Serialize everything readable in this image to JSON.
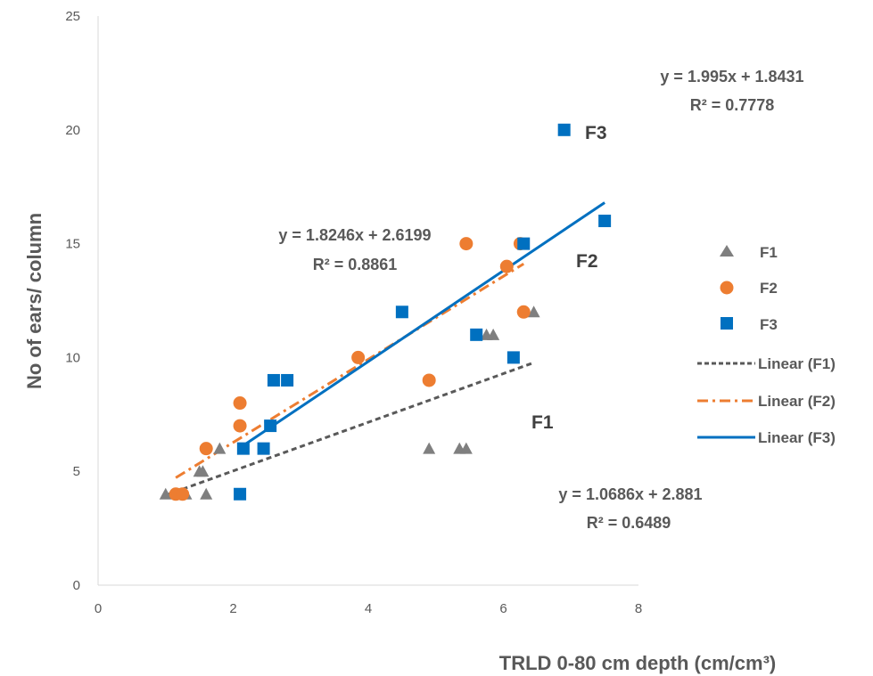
{
  "chart_data": {
    "type": "scatter",
    "title": "",
    "xlabel": "TRLD 0-80 cm depth (cm/cm³)",
    "ylabel": "No of ears/ column",
    "xlim": [
      0,
      8
    ],
    "ylim": [
      0,
      25
    ],
    "xticks": [
      "0",
      "2",
      "4",
      "6",
      "8"
    ],
    "yticks": [
      "0",
      "5",
      "10",
      "15",
      "20",
      "25"
    ],
    "grid": false,
    "legend_position": "right",
    "series": [
      {
        "name": "F1",
        "marker": "triangle",
        "color": "#7f7f7f",
        "points": [
          [
            1.0,
            4
          ],
          [
            1.2,
            4
          ],
          [
            1.3,
            4
          ],
          [
            1.5,
            5
          ],
          [
            1.55,
            5
          ],
          [
            1.6,
            4
          ],
          [
            1.8,
            6
          ],
          [
            4.9,
            6
          ],
          [
            5.35,
            6
          ],
          [
            5.45,
            6
          ],
          [
            5.75,
            11
          ],
          [
            5.85,
            11
          ],
          [
            6.45,
            12
          ]
        ]
      },
      {
        "name": "F2",
        "marker": "circle",
        "color": "#ed7d31",
        "points": [
          [
            1.15,
            4
          ],
          [
            1.25,
            4
          ],
          [
            1.6,
            6
          ],
          [
            2.1,
            7
          ],
          [
            2.1,
            8
          ],
          [
            3.85,
            10
          ],
          [
            4.9,
            9
          ],
          [
            5.45,
            15
          ],
          [
            6.05,
            14
          ],
          [
            6.25,
            15
          ],
          [
            6.3,
            12
          ]
        ]
      },
      {
        "name": "F3",
        "marker": "square",
        "color": "#0070c0",
        "points": [
          [
            2.1,
            4
          ],
          [
            2.15,
            6
          ],
          [
            2.45,
            6
          ],
          [
            2.55,
            7
          ],
          [
            2.6,
            9
          ],
          [
            2.8,
            9
          ],
          [
            4.5,
            12
          ],
          [
            5.6,
            11
          ],
          [
            6.15,
            10
          ],
          [
            6.3,
            15
          ],
          [
            6.9,
            20
          ],
          [
            7.5,
            16
          ]
        ]
      }
    ],
    "trendlines": [
      {
        "name": "Linear (F1)",
        "series": "F1",
        "slope": 1.0686,
        "intercept": 2.881,
        "x_range": [
          1.0,
          6.45
        ],
        "color": "#595959",
        "dash": "dashed"
      },
      {
        "name": "Linear (F2)",
        "series": "F2",
        "slope": 1.8246,
        "intercept": 2.6199,
        "x_range": [
          1.15,
          6.3
        ],
        "color": "#ed7d31",
        "dash": "dash-dot"
      },
      {
        "name": "Linear (F3)",
        "series": "F3",
        "slope": 1.995,
        "intercept": 1.8431,
        "x_range": [
          2.1,
          7.5
        ],
        "color": "#0070c0",
        "dash": "solid"
      }
    ],
    "annotations": {
      "f3_equation": "y = 1.995x + 1.8431",
      "f3_r2": "R² = 0.7778",
      "f2_equation": "y = 1.8246x + 2.6199",
      "f2_r2": "R² = 0.8861",
      "f1_equation": "y = 1.0686x + 2.881",
      "f1_r2": "R² = 0.6489",
      "label_f3": "F3",
      "label_f2": "F2",
      "label_f1": "F1"
    }
  }
}
